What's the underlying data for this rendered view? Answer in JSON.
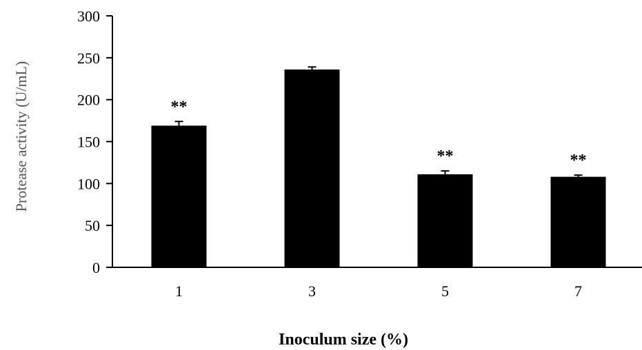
{
  "chart_data": {
    "type": "bar",
    "categories": [
      "1",
      "3",
      "5",
      "7"
    ],
    "values": [
      169,
      236,
      111,
      108
    ],
    "errors": [
      5,
      3,
      4,
      2
    ],
    "annotations": [
      "**",
      "",
      "**",
      "**"
    ],
    "xlabel": "Inoculum  size (%)",
    "ylabel": "Protease activity  (U/mL)",
    "ylim": [
      0,
      300
    ],
    "yticks": [
      0,
      50,
      100,
      150,
      200,
      250,
      300
    ],
    "grid": false,
    "bar_color": "#000000"
  }
}
